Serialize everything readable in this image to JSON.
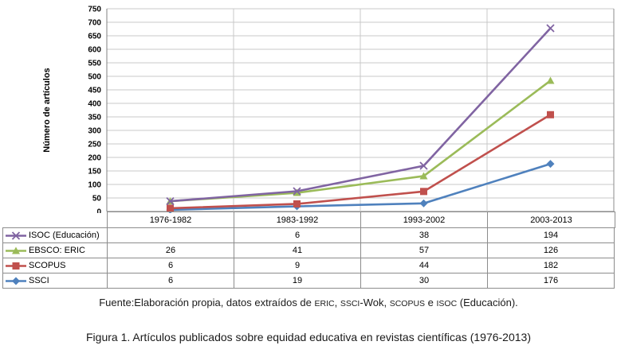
{
  "figure": {
    "caption": "Figura 1. Artículos publicados sobre equidad educativa en revistas científicas (1976-2013)",
    "source_note_segments": [
      {
        "text": "Fuente:Elaboración propia, datos extraídos de ",
        "caps": false
      },
      {
        "text": "ERIC",
        "caps": true
      },
      {
        "text": ", ",
        "caps": false
      },
      {
        "text": "SSCI",
        "caps": true
      },
      {
        "text": "-Wok, ",
        "caps": false
      },
      {
        "text": "SCOPUS",
        "caps": true
      },
      {
        "text": " e ",
        "caps": false
      },
      {
        "text": "ISOC",
        "caps": true
      },
      {
        "text": " (Educación).",
        "caps": false
      }
    ]
  },
  "chart_data": {
    "type": "line",
    "stacked": true,
    "title": "",
    "xlabel": "",
    "ylabel": "Número de artículos",
    "ylim": [
      0,
      750
    ],
    "ytick_step": 50,
    "grid": true,
    "legend_position": "data-table-left",
    "categories": [
      "1976-1982",
      "1983-1992",
      "1993-2002",
      "2003-2013"
    ],
    "series": [
      {
        "name": "ISOC (Educación)",
        "values": [
          null,
          6,
          38,
          194
        ],
        "color": "#8064A2",
        "marker": "x"
      },
      {
        "name": "EBSCO: ERIC",
        "values": [
          26,
          41,
          57,
          126
        ],
        "color": "#9BBB59",
        "marker": "triangle"
      },
      {
        "name": "SCOPUS",
        "values": [
          6,
          9,
          44,
          182
        ],
        "color": "#C0504D",
        "marker": "square"
      },
      {
        "name": "SSCI",
        "values": [
          6,
          19,
          30,
          176
        ],
        "color": "#4F81BD",
        "marker": "diamond"
      }
    ],
    "colors": {
      "gridline": "#c9c9c9",
      "plot_border": "#8c8c8c",
      "axis_line": "#808080"
    }
  }
}
